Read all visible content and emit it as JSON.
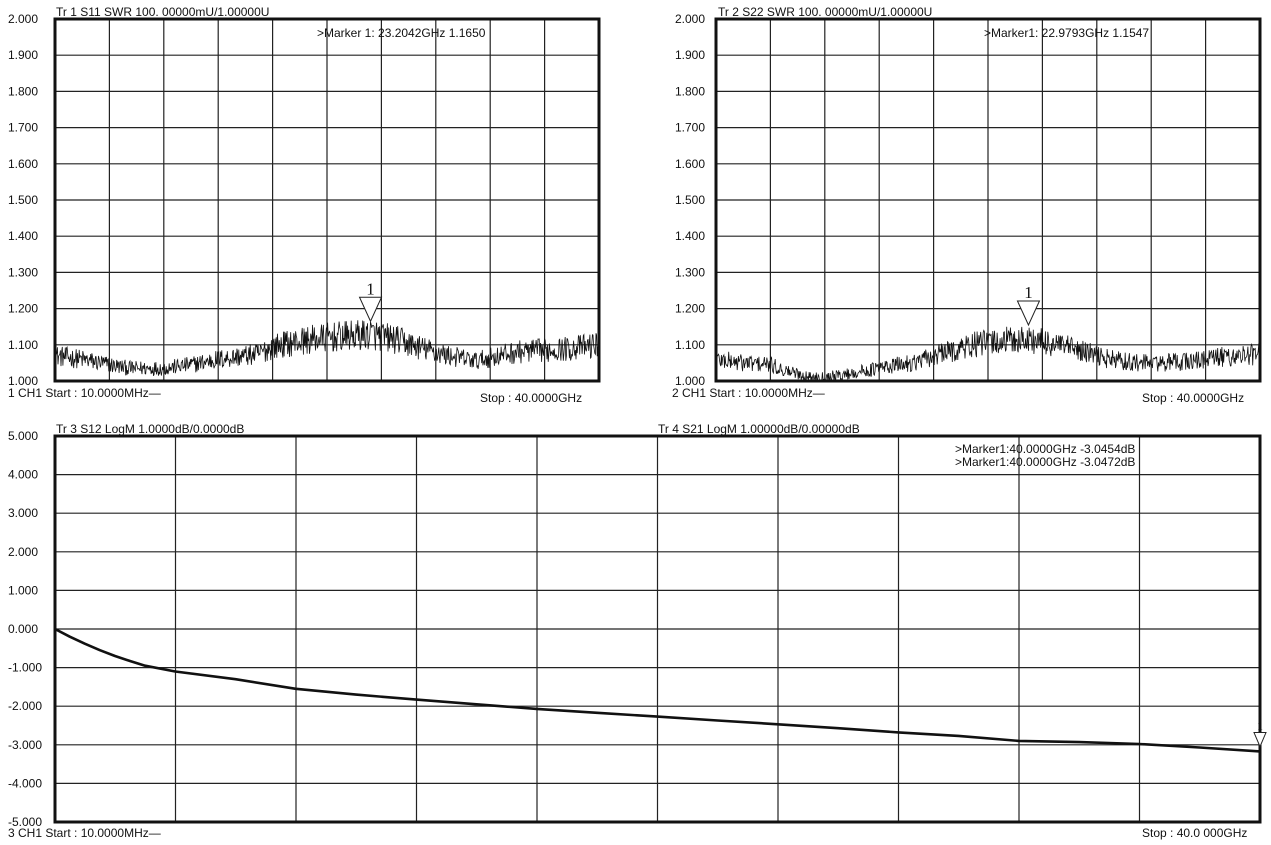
{
  "chart_data": [
    {
      "id": "tr1",
      "type": "line",
      "title": "Tr 1  S11 SWR 100. 00000mU/1.00000U",
      "footer_left": "1 CH1   Start : 10.0000MHz—",
      "footer_right": "Stop : 40.0000GHz",
      "x_unit": "GHz",
      "xlim": [
        0.01,
        40
      ],
      "ylim": [
        1.0,
        2.0
      ],
      "y_ticks": [
        "2.000",
        "1.900",
        "1.800",
        "1.700",
        "1.600",
        "1.500",
        "1.400",
        "1.300",
        "1.200",
        "1.100",
        "1.000"
      ],
      "x_divisions": 10,
      "grid": true,
      "trace_style": "noisy",
      "envelope": {
        "x": [
          0.01,
          2,
          4,
          5.5,
          8,
          10,
          12,
          15,
          16,
          18,
          20,
          22,
          23.2,
          25,
          27,
          29,
          31,
          32,
          34,
          36,
          38,
          40
        ],
        "y": [
          1.07,
          1.06,
          1.045,
          1.035,
          1.035,
          1.045,
          1.06,
          1.075,
          1.095,
          1.11,
          1.12,
          1.125,
          1.13,
          1.115,
          1.09,
          1.07,
          1.055,
          1.065,
          1.08,
          1.085,
          1.09,
          1.1
        ]
      },
      "markers": [
        {
          "number": "1",
          "x": 23.2042,
          "y": 1.165,
          "label": ">Marker 1:  23.2042GHz   1.1650"
        }
      ]
    },
    {
      "id": "tr2",
      "type": "line",
      "title": "Tr 2  S22 SWR 100. 00000mU/1.00000U",
      "footer_left": "2 CH1   Start : 10.0000MHz—",
      "footer_right": "Stop : 40.0000GHz",
      "x_unit": "GHz",
      "xlim": [
        0.01,
        40
      ],
      "ylim": [
        1.0,
        2.0
      ],
      "y_ticks": [
        "2.000",
        "1.900",
        "1.800",
        "1.700",
        "1.600",
        "1.500",
        "1.400",
        "1.300",
        "1.200",
        "1.100",
        "1.000"
      ],
      "x_divisions": 10,
      "grid": true,
      "trace_style": "noisy",
      "envelope": {
        "x": [
          0.01,
          2,
          4,
          5,
          7,
          9,
          12,
          15,
          17,
          19,
          21,
          23,
          25,
          27,
          29,
          31,
          33,
          35,
          37,
          40
        ],
        "y": [
          1.06,
          1.05,
          1.045,
          1.03,
          1.01,
          1.015,
          1.035,
          1.055,
          1.08,
          1.1,
          1.11,
          1.115,
          1.1,
          1.08,
          1.06,
          1.05,
          1.05,
          1.055,
          1.065,
          1.075
        ]
      },
      "markers": [
        {
          "number": "1",
          "x": 22.9793,
          "y": 1.1547,
          "label": ">Marker1:   22.9793GHz   1.1547"
        }
      ]
    },
    {
      "id": "tr34",
      "type": "line",
      "title_left": "Tr 3   S12 LogM 1.0000dB/0.0000dB",
      "title_right": "Tr 4   S21 LogM 1.00000dB/0.00000dB",
      "footer_left": "3 CH1   Start : 10.0000MHz—",
      "footer_right": "Stop : 40.0 000GHz",
      "x_unit": "GHz",
      "xlim": [
        0.01,
        40
      ],
      "ylim": [
        -5.0,
        5.0
      ],
      "y_ticks": [
        "5.000",
        "4.000",
        "3.000",
        "2.000",
        "1.000",
        "0.000",
        "-1.000",
        "-2.000",
        "-3.000",
        "-4.000",
        "-5.000"
      ],
      "x_divisions": 10,
      "grid": true,
      "trace_style": "smooth",
      "series": [
        {
          "x": [
            0.01,
            0.5,
            1,
            1.5,
            2,
            2.5,
            3,
            4,
            6,
            8,
            10,
            12,
            14,
            16,
            18,
            20,
            22,
            24,
            26,
            28,
            30,
            32,
            34,
            36,
            38,
            40
          ],
          "y": [
            0.0,
            -0.2,
            -0.38,
            -0.55,
            -0.7,
            -0.83,
            -0.95,
            -1.1,
            -1.3,
            -1.55,
            -1.7,
            -1.83,
            -1.95,
            -2.07,
            -2.17,
            -2.27,
            -2.37,
            -2.47,
            -2.57,
            -2.68,
            -2.77,
            -2.9,
            -2.93,
            -2.98,
            -3.07,
            -3.17
          ]
        }
      ],
      "markers": [
        {
          "number": "1",
          "x": 40.0,
          "y": -3.0454
        },
        {
          "number": "",
          "x": 40.0,
          "y": -3.0472
        }
      ],
      "marker_labels": [
        ">Marker1:40.0000GHz   -3.0454dB",
        ">Marker1:40.0000GHz   -3.0472dB"
      ]
    }
  ]
}
